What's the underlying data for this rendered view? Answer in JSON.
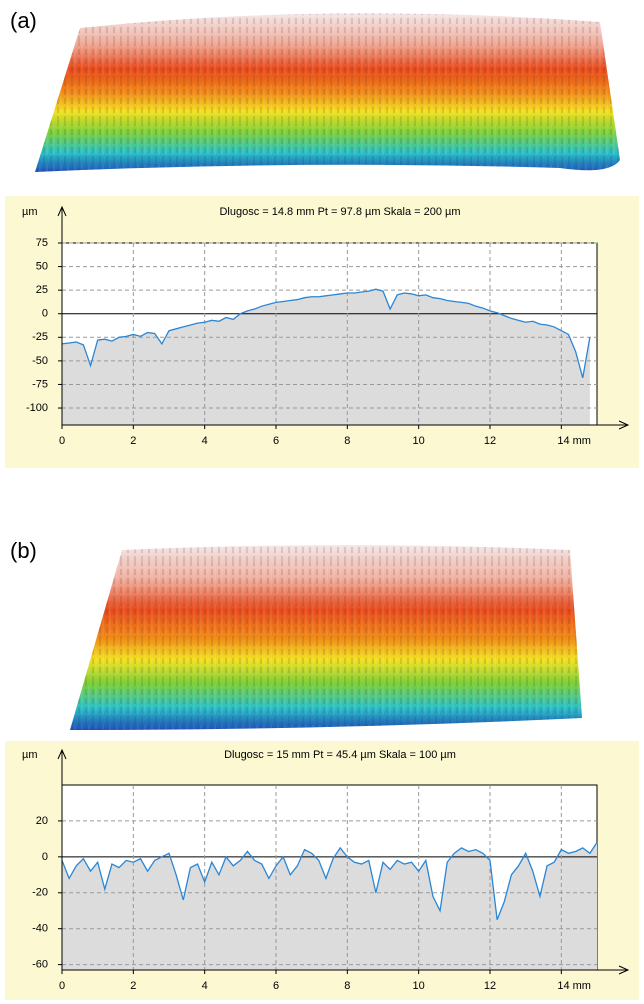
{
  "chart_data": [
    {
      "type": "line",
      "panel_label": "(a)",
      "title": "Dlugosc = 14.8 mm  Pt = 97.8 µm  Skala = 200 µm",
      "y_label": "µm",
      "x": [
        0,
        0.2,
        0.4,
        0.6,
        0.8,
        1.0,
        1.2,
        1.4,
        1.6,
        1.8,
        2.0,
        2.2,
        2.4,
        2.6,
        2.8,
        3.0,
        3.2,
        3.4,
        3.6,
        3.8,
        4.0,
        4.2,
        4.4,
        4.6,
        4.8,
        5.0,
        5.2,
        5.4,
        5.6,
        5.8,
        6.0,
        6.2,
        6.4,
        6.6,
        6.8,
        7.0,
        7.2,
        7.4,
        7.6,
        7.8,
        8.0,
        8.2,
        8.4,
        8.6,
        8.8,
        9.0,
        9.2,
        9.4,
        9.6,
        9.8,
        10.0,
        10.2,
        10.4,
        10.6,
        10.8,
        11.0,
        11.2,
        11.4,
        11.6,
        11.8,
        12.0,
        12.2,
        12.4,
        12.6,
        12.8,
        13.0,
        13.2,
        13.4,
        13.6,
        13.8,
        14.0,
        14.2,
        14.4,
        14.6,
        14.8
      ],
      "values": [
        -32,
        -31,
        -30,
        -33,
        -55,
        -28,
        -27,
        -29,
        -25,
        -24,
        -22,
        -24,
        -20,
        -21,
        -32,
        -18,
        -16,
        -14,
        -12,
        -10,
        -9,
        -7,
        -8,
        -4,
        -6,
        0,
        3,
        5,
        8,
        10,
        12,
        13,
        14,
        15,
        17,
        18,
        18,
        19,
        20,
        21,
        22,
        22,
        23,
        24,
        26,
        24,
        5,
        20,
        22,
        21,
        19,
        20,
        17,
        16,
        14,
        13,
        12,
        11,
        8,
        6,
        3,
        1,
        -2,
        -5,
        -7,
        -9,
        -8,
        -11,
        -12,
        -14,
        -18,
        -22,
        -40,
        -68,
        -25
      ],
      "color": "#2a86d6",
      "fill_color": "#dcdcdc",
      "xlim": [
        0,
        15
      ],
      "xticks": [
        0,
        2,
        4,
        6,
        8,
        10,
        12,
        {
          "value": 14,
          "label": "14 mm"
        }
      ],
      "ylim": [
        -118,
        75
      ],
      "yticks": [
        75,
        50,
        25,
        0,
        -25,
        -50,
        -75,
        -100
      ],
      "grid": true
    },
    {
      "type": "line",
      "panel_label": "(b)",
      "title": "Dlugosc = 15 mm  Pt = 45.4 µm  Skala = 100 µm",
      "y_label": "µm",
      "x": [
        0,
        0.2,
        0.4,
        0.6,
        0.8,
        1.0,
        1.2,
        1.4,
        1.6,
        1.8,
        2.0,
        2.2,
        2.4,
        2.6,
        2.8,
        3.0,
        3.2,
        3.4,
        3.6,
        3.8,
        4.0,
        4.2,
        4.4,
        4.6,
        4.8,
        5.0,
        5.2,
        5.4,
        5.6,
        5.8,
        6.0,
        6.2,
        6.4,
        6.6,
        6.8,
        7.0,
        7.2,
        7.4,
        7.6,
        7.8,
        8.0,
        8.2,
        8.4,
        8.6,
        8.8,
        9.0,
        9.2,
        9.4,
        9.6,
        9.8,
        10.0,
        10.2,
        10.4,
        10.6,
        10.8,
        11.0,
        11.2,
        11.4,
        11.6,
        11.8,
        12.0,
        12.2,
        12.4,
        12.6,
        12.8,
        13.0,
        13.2,
        13.4,
        13.6,
        13.8,
        14.0,
        14.2,
        14.4,
        14.6,
        14.8,
        15.0
      ],
      "values": [
        -2,
        -12,
        -5,
        -1,
        -8,
        -3,
        -18,
        -4,
        -6,
        -2,
        -3,
        -1,
        -8,
        -2,
        0,
        2,
        -10,
        -24,
        -6,
        -4,
        -14,
        -3,
        -10,
        0,
        -5,
        -2,
        3,
        -2,
        -4,
        -12,
        -5,
        0,
        -10,
        -5,
        4,
        2,
        -2,
        -12,
        -1,
        5,
        0,
        -3,
        -4,
        -2,
        -20,
        -3,
        -7,
        -2,
        -4,
        -3,
        -8,
        -2,
        -22,
        -30,
        -3,
        2,
        5,
        3,
        4,
        2,
        -2,
        -35,
        -25,
        -10,
        -5,
        2,
        -8,
        -22,
        -5,
        -3,
        4,
        2,
        3,
        5,
        2,
        8
      ],
      "color": "#2a86d6",
      "fill_color": "#dcdcdc",
      "xlim": [
        0,
        15
      ],
      "xticks": [
        0,
        2,
        4,
        6,
        8,
        10,
        12,
        {
          "value": 14,
          "label": "14 mm"
        }
      ],
      "ylim": [
        -63,
        40
      ],
      "yticks": [
        20,
        0,
        -20,
        -40,
        -60
      ],
      "grid": true
    }
  ]
}
